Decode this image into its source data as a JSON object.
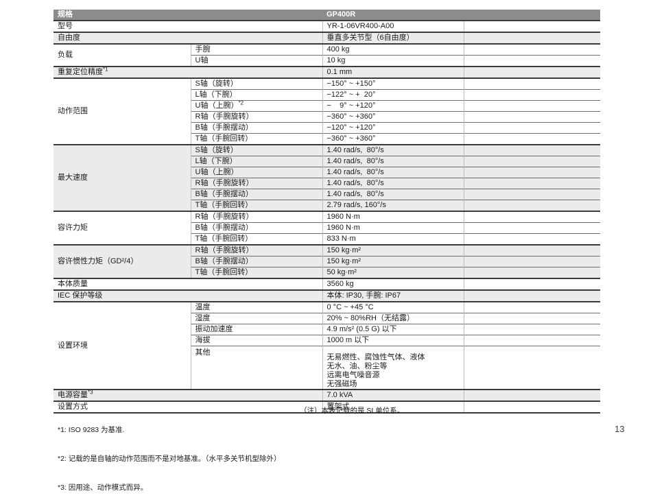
{
  "colors": {
    "header_bg": "#8c8c8c",
    "row_shade": "#ebebeb",
    "header_text": "#ffffff"
  },
  "page": {
    "number": "13"
  },
  "spec_table": {
    "header": {
      "title": "规格",
      "model": "GP400R"
    },
    "rows": [
      {
        "sec": 1,
        "cells": [
          {
            "t": "型号",
            "cs": 2
          },
          {
            "t": "YR-1-06VR400-A00"
          },
          {
            "t": ""
          }
        ]
      },
      {
        "sec": 1,
        "shade": 1,
        "cells": [
          {
            "t": "自由度",
            "cs": 2
          },
          {
            "t": "垂直多关节型（6自由度）"
          },
          {
            "t": ""
          }
        ]
      },
      {
        "sec": 1,
        "cells": [
          {
            "t": "负载",
            "rs": 2
          },
          {
            "t": "手腕"
          },
          {
            "t": "400 kg"
          },
          {
            "t": ""
          }
        ]
      },
      {
        "cells": [
          {
            "t": "U轴"
          },
          {
            "t": "10 kg"
          },
          {
            "t": ""
          }
        ]
      },
      {
        "sec": 1,
        "shade": 1,
        "cells": [
          {
            "t": "重复定位精度",
            "sup": "*1",
            "cs": 2
          },
          {
            "t": "0.1 mm"
          },
          {
            "t": ""
          }
        ]
      },
      {
        "sec": 1,
        "cells": [
          {
            "t": "动作范围",
            "rs": 6
          },
          {
            "t": "S轴（旋转）"
          },
          {
            "t": "−150° ~ +150°"
          },
          {
            "t": ""
          }
        ]
      },
      {
        "cells": [
          {
            "t": "L轴（下腕）"
          },
          {
            "t": "−122° ~ +  20°"
          },
          {
            "t": ""
          }
        ]
      },
      {
        "cells": [
          {
            "t": "U轴（上腕）",
            "sup": "*2"
          },
          {
            "t": "−    9° ~ +120°"
          },
          {
            "t": ""
          }
        ]
      },
      {
        "cells": [
          {
            "t": "R轴（手腕旋转）"
          },
          {
            "t": "−360° ~ +360°"
          },
          {
            "t": ""
          }
        ]
      },
      {
        "cells": [
          {
            "t": "B轴（手腕摆动）"
          },
          {
            "t": "−120° ~ +120°"
          },
          {
            "t": ""
          }
        ]
      },
      {
        "cells": [
          {
            "t": "T轴（手腕回转）"
          },
          {
            "t": "−360° ~ +360°"
          },
          {
            "t": ""
          }
        ]
      },
      {
        "sec": 1,
        "shade": 1,
        "cells": [
          {
            "t": "最大速度",
            "rs": 6
          },
          {
            "t": "S轴（旋转）"
          },
          {
            "t": "1.40 rad/s,  80°/s"
          },
          {
            "t": ""
          }
        ]
      },
      {
        "shade": 1,
        "cells": [
          {
            "t": "L轴（下腕）"
          },
          {
            "t": "1.40 rad/s,  80°/s"
          },
          {
            "t": ""
          }
        ]
      },
      {
        "shade": 1,
        "cells": [
          {
            "t": "U轴（上腕）"
          },
          {
            "t": "1.40 rad/s,  80°/s"
          },
          {
            "t": ""
          }
        ]
      },
      {
        "shade": 1,
        "cells": [
          {
            "t": "R轴（手腕旋转）"
          },
          {
            "t": "1.40 rad/s,  80°/s"
          },
          {
            "t": ""
          }
        ]
      },
      {
        "shade": 1,
        "cells": [
          {
            "t": "B轴（手腕摆动）"
          },
          {
            "t": "1.40 rad/s,  80°/s"
          },
          {
            "t": ""
          }
        ]
      },
      {
        "shade": 1,
        "cells": [
          {
            "t": "T轴（手腕回转）"
          },
          {
            "t": "2.79 rad/s, 160°/s"
          },
          {
            "t": ""
          }
        ]
      },
      {
        "sec": 1,
        "cells": [
          {
            "t": "容许力矩",
            "rs": 3
          },
          {
            "t": "R轴（手腕旋转）"
          },
          {
            "t": "1960 N·m"
          },
          {
            "t": ""
          }
        ]
      },
      {
        "cells": [
          {
            "t": "B轴（手腕摆动）"
          },
          {
            "t": "1960 N·m"
          },
          {
            "t": ""
          }
        ]
      },
      {
        "cells": [
          {
            "t": "T轴（手腕回转）"
          },
          {
            "t": "833 N·m"
          },
          {
            "t": ""
          }
        ]
      },
      {
        "sec": 1,
        "shade": 1,
        "cells": [
          {
            "t": "容许惯性力矩（GD²/4）",
            "rs": 3
          },
          {
            "t": "R轴（手腕旋转）"
          },
          {
            "t": "150 kg·m²"
          },
          {
            "t": ""
          }
        ]
      },
      {
        "shade": 1,
        "cells": [
          {
            "t": "B轴（手腕摆动）"
          },
          {
            "t": "150 kg·m²"
          },
          {
            "t": ""
          }
        ]
      },
      {
        "shade": 1,
        "cells": [
          {
            "t": "T轴（手腕回转）"
          },
          {
            "t": "50 kg·m²"
          },
          {
            "t": ""
          }
        ]
      },
      {
        "sec": 1,
        "cells": [
          {
            "t": "本体质量",
            "cs": 2
          },
          {
            "t": "3560 kg"
          },
          {
            "t": ""
          }
        ]
      },
      {
        "sec": 1,
        "shade": 1,
        "cells": [
          {
            "t": "IEC 保护等级",
            "cs": 2
          },
          {
            "t": "本体: IP30, 手腕: IP67"
          },
          {
            "t": ""
          }
        ]
      },
      {
        "sec": 1,
        "cells": [
          {
            "t": "设置环境",
            "rs": 5
          },
          {
            "t": "温度"
          },
          {
            "t": "0 °C ~ +45 °C"
          },
          {
            "t": ""
          }
        ]
      },
      {
        "cells": [
          {
            "t": "湿度"
          },
          {
            "t": "20% ~ 80%RH（无结露）"
          },
          {
            "t": ""
          }
        ]
      },
      {
        "cells": [
          {
            "t": "振动加速度"
          },
          {
            "t": "4.9 m/s² (0.5 G) 以下"
          },
          {
            "t": ""
          }
        ]
      },
      {
        "cells": [
          {
            "t": "海拔"
          },
          {
            "t": "1000 m 以下"
          },
          {
            "t": ""
          }
        ]
      },
      {
        "tall": 1,
        "cells": [
          {
            "t": "其他"
          },
          {
            "lines": [
              "无易燃性、腐蚀性气体、液体",
              "无水、油、粉尘等",
              "远离电气噪音源",
              "无强磁场"
            ]
          },
          {
            "t": ""
          }
        ]
      },
      {
        "sec": 1,
        "shade": 1,
        "cells": [
          {
            "t": "电源容量",
            "sup": "*3",
            "cs": 2
          },
          {
            "t": "7.0 kVA"
          },
          {
            "t": ""
          }
        ]
      },
      {
        "sec": 1,
        "cells": [
          {
            "t": "设置方式",
            "cs": 2
          },
          {
            "t": "置架式"
          },
          {
            "t": ""
          }
        ]
      }
    ]
  },
  "footnotes": {
    "items": [
      "*1: ISO 9283 为基准.",
      "*2: 记载的是自轴的动作范围而不是对地基准。（水平多关节机型除外）",
      "*3: 因用途、动作模式而异。"
    ],
    "note": "（注）本表记载的是 SI 单位系。"
  }
}
